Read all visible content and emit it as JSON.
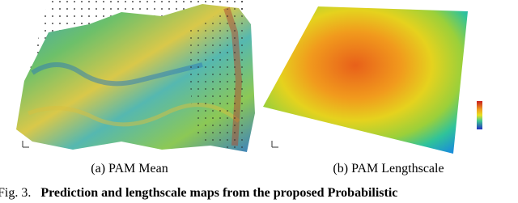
{
  "figure": {
    "panels": [
      {
        "caption": "(a) PAM Mean"
      },
      {
        "caption": "(b) PAM Lengthscale"
      }
    ],
    "caption": {
      "label": "Fig. 3.",
      "text": "Prediction and lengthscale maps from the proposed Probabilistic"
    }
  }
}
